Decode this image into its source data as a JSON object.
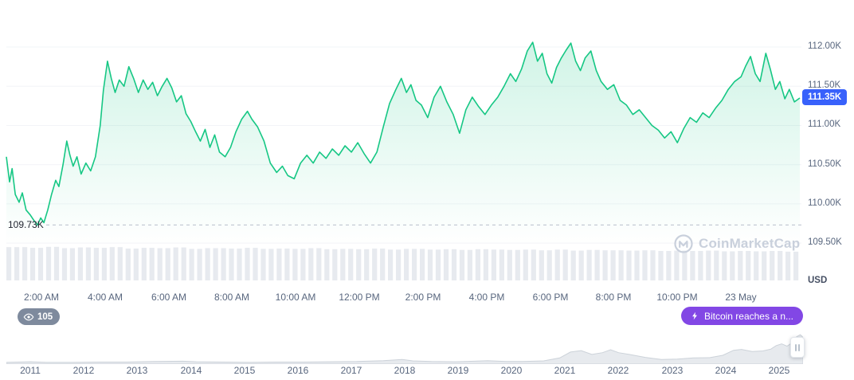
{
  "colors": {
    "line": "#16c784",
    "area_top": "rgba(22,199,132,0.20)",
    "area_bottom": "rgba(22,199,132,0.0)",
    "grid": "#f2f4f7",
    "dashed_line": "#b9c0cc",
    "volume_bar": "#e7eaef",
    "mini_fill": "#e7eaee",
    "mini_stroke": "#ccd2d9",
    "price_badge_bg": "#3861fb",
    "news_pill_bg": "#8247e5",
    "views_pill_bg": "#7e8a9d"
  },
  "watermark": {
    "text": "CoinMarketCap"
  },
  "annotations": {
    "watch_count": "105",
    "news_label": "Bitcoin reaches a n..."
  },
  "chart_data": {
    "main": {
      "type": "area",
      "unit_label": "USD",
      "current_price_label": "111.35K",
      "low_label": "109.73K",
      "low_value": 109.73,
      "y_top_value": 112.6,
      "y_bottom_value": 109.45,
      "t_min": 0.9,
      "t_max": 25.9,
      "y_ticks": [
        {
          "value": 112.0,
          "label": "112.00K"
        },
        {
          "value": 111.5,
          "label": "111.50K"
        },
        {
          "value": 111.0,
          "label": "111.00K"
        },
        {
          "value": 110.5,
          "label": "110.50K"
        },
        {
          "value": 110.0,
          "label": "110.00K"
        },
        {
          "value": 109.5,
          "label": "109.50K"
        }
      ],
      "x_ticks": [
        {
          "t": 2,
          "label": "2:00 AM"
        },
        {
          "t": 4,
          "label": "4:00 AM"
        },
        {
          "t": 6,
          "label": "6:00 AM"
        },
        {
          "t": 8,
          "label": "8:00 AM"
        },
        {
          "t": 10,
          "label": "10:00 AM"
        },
        {
          "t": 12,
          "label": "12:00 PM"
        },
        {
          "t": 14,
          "label": "2:00 PM"
        },
        {
          "t": 16,
          "label": "4:00 PM"
        },
        {
          "t": 18,
          "label": "6:00 PM"
        },
        {
          "t": 20,
          "label": "8:00 PM"
        },
        {
          "t": 22,
          "label": "10:00 PM"
        },
        {
          "t": 24,
          "label": "23 May"
        }
      ],
      "series": [
        [
          0.9,
          110.6
        ],
        [
          1.0,
          110.28
        ],
        [
          1.08,
          110.45
        ],
        [
          1.18,
          110.12
        ],
        [
          1.3,
          110.02
        ],
        [
          1.4,
          110.14
        ],
        [
          1.52,
          109.92
        ],
        [
          1.65,
          109.86
        ],
        [
          1.78,
          109.78
        ],
        [
          1.88,
          109.73
        ],
        [
          1.98,
          109.82
        ],
        [
          2.08,
          109.76
        ],
        [
          2.2,
          109.92
        ],
        [
          2.32,
          110.12
        ],
        [
          2.45,
          110.3
        ],
        [
          2.55,
          110.22
        ],
        [
          2.68,
          110.5
        ],
        [
          2.8,
          110.8
        ],
        [
          2.9,
          110.62
        ],
        [
          3.0,
          110.48
        ],
        [
          3.12,
          110.6
        ],
        [
          3.25,
          110.38
        ],
        [
          3.4,
          110.52
        ],
        [
          3.55,
          110.42
        ],
        [
          3.7,
          110.6
        ],
        [
          3.85,
          111.0
        ],
        [
          3.95,
          111.45
        ],
        [
          4.08,
          111.82
        ],
        [
          4.2,
          111.6
        ],
        [
          4.32,
          111.42
        ],
        [
          4.45,
          111.58
        ],
        [
          4.6,
          111.5
        ],
        [
          4.75,
          111.75
        ],
        [
          4.9,
          111.6
        ],
        [
          5.05,
          111.42
        ],
        [
          5.2,
          111.58
        ],
        [
          5.35,
          111.46
        ],
        [
          5.5,
          111.55
        ],
        [
          5.65,
          111.38
        ],
        [
          5.8,
          111.5
        ],
        [
          5.95,
          111.6
        ],
        [
          6.1,
          111.48
        ],
        [
          6.25,
          111.3
        ],
        [
          6.4,
          111.38
        ],
        [
          6.55,
          111.15
        ],
        [
          6.7,
          111.05
        ],
        [
          6.85,
          110.92
        ],
        [
          7.0,
          110.8
        ],
        [
          7.15,
          110.95
        ],
        [
          7.3,
          110.72
        ],
        [
          7.45,
          110.88
        ],
        [
          7.6,
          110.66
        ],
        [
          7.78,
          110.6
        ],
        [
          7.95,
          110.72
        ],
        [
          8.12,
          110.92
        ],
        [
          8.3,
          111.08
        ],
        [
          8.48,
          111.18
        ],
        [
          8.62,
          111.08
        ],
        [
          8.8,
          110.98
        ],
        [
          9.0,
          110.8
        ],
        [
          9.2,
          110.52
        ],
        [
          9.4,
          110.4
        ],
        [
          9.58,
          110.48
        ],
        [
          9.75,
          110.36
        ],
        [
          9.95,
          110.32
        ],
        [
          10.15,
          110.52
        ],
        [
          10.35,
          110.62
        ],
        [
          10.55,
          110.52
        ],
        [
          10.75,
          110.66
        ],
        [
          10.95,
          110.58
        ],
        [
          11.15,
          110.7
        ],
        [
          11.35,
          110.62
        ],
        [
          11.55,
          110.74
        ],
        [
          11.75,
          110.66
        ],
        [
          11.95,
          110.78
        ],
        [
          12.15,
          110.64
        ],
        [
          12.35,
          110.52
        ],
        [
          12.55,
          110.66
        ],
        [
          12.75,
          110.98
        ],
        [
          12.95,
          111.28
        ],
        [
          13.15,
          111.46
        ],
        [
          13.32,
          111.6
        ],
        [
          13.48,
          111.42
        ],
        [
          13.62,
          111.52
        ],
        [
          13.78,
          111.32
        ],
        [
          13.95,
          111.26
        ],
        [
          14.15,
          111.1
        ],
        [
          14.35,
          111.36
        ],
        [
          14.55,
          111.5
        ],
        [
          14.75,
          111.3
        ],
        [
          14.95,
          111.14
        ],
        [
          15.15,
          110.9
        ],
        [
          15.35,
          111.2
        ],
        [
          15.55,
          111.36
        ],
        [
          15.75,
          111.24
        ],
        [
          15.95,
          111.14
        ],
        [
          16.15,
          111.26
        ],
        [
          16.35,
          111.36
        ],
        [
          16.55,
          111.5
        ],
        [
          16.75,
          111.66
        ],
        [
          16.92,
          111.56
        ],
        [
          17.1,
          111.72
        ],
        [
          17.28,
          111.95
        ],
        [
          17.45,
          112.06
        ],
        [
          17.6,
          111.82
        ],
        [
          17.75,
          111.92
        ],
        [
          17.9,
          111.66
        ],
        [
          18.05,
          111.54
        ],
        [
          18.2,
          111.74
        ],
        [
          18.35,
          111.86
        ],
        [
          18.5,
          111.96
        ],
        [
          18.65,
          112.05
        ],
        [
          18.8,
          111.82
        ],
        [
          18.95,
          111.7
        ],
        [
          19.1,
          111.86
        ],
        [
          19.28,
          111.95
        ],
        [
          19.45,
          111.7
        ],
        [
          19.6,
          111.56
        ],
        [
          19.8,
          111.46
        ],
        [
          20.0,
          111.52
        ],
        [
          20.2,
          111.32
        ],
        [
          20.4,
          111.26
        ],
        [
          20.6,
          111.14
        ],
        [
          20.8,
          111.2
        ],
        [
          21.0,
          111.1
        ],
        [
          21.2,
          111.0
        ],
        [
          21.4,
          110.94
        ],
        [
          21.6,
          110.84
        ],
        [
          21.8,
          110.92
        ],
        [
          22.0,
          110.78
        ],
        [
          22.2,
          110.96
        ],
        [
          22.4,
          111.1
        ],
        [
          22.6,
          111.04
        ],
        [
          22.8,
          111.16
        ],
        [
          23.0,
          111.1
        ],
        [
          23.2,
          111.22
        ],
        [
          23.4,
          111.32
        ],
        [
          23.6,
          111.46
        ],
        [
          23.8,
          111.56
        ],
        [
          24.0,
          111.62
        ],
        [
          24.15,
          111.76
        ],
        [
          24.3,
          111.88
        ],
        [
          24.45,
          111.66
        ],
        [
          24.6,
          111.56
        ],
        [
          24.78,
          111.92
        ],
        [
          24.92,
          111.72
        ],
        [
          25.08,
          111.46
        ],
        [
          25.22,
          111.56
        ],
        [
          25.38,
          111.34
        ],
        [
          25.52,
          111.46
        ],
        [
          25.68,
          111.3
        ],
        [
          25.85,
          111.35
        ]
      ],
      "volume_bars": [
        0.95,
        0.93,
        0.96,
        0.92,
        0.94,
        0.93,
        0.95,
        0.91,
        0.93,
        0.92,
        0.94,
        0.9,
        0.92,
        0.91,
        0.93,
        0.9,
        0.91,
        0.9,
        0.92,
        0.89,
        0.9,
        0.89,
        0.91,
        0.88,
        0.9,
        0.88,
        0.89,
        0.87,
        0.89,
        0.88,
        0.87,
        0.88,
        0.86,
        0.88,
        0.85,
        0.87,
        0.86,
        0.85,
        0.86,
        0.84,
        0.85,
        0.84,
        0.85,
        0.83,
        0.84,
        0.83,
        0.84,
        0.82
      ]
    },
    "history": {
      "type": "area",
      "x_min": 2010.55,
      "x_max": 2025.45,
      "years": [
        "2011",
        "2012",
        "2013",
        "2014",
        "2015",
        "2016",
        "2017",
        "2018",
        "2019",
        "2020",
        "2021",
        "2022",
        "2023",
        "2024",
        "2025"
      ],
      "profile": [
        [
          2010.55,
          0.03
        ],
        [
          2011.0,
          0.05
        ],
        [
          2011.3,
          0.03
        ],
        [
          2011.8,
          0.03
        ],
        [
          2012.3,
          0.04
        ],
        [
          2012.8,
          0.04
        ],
        [
          2013.3,
          0.06
        ],
        [
          2013.85,
          0.07
        ],
        [
          2014.1,
          0.05
        ],
        [
          2014.6,
          0.04
        ],
        [
          2015.1,
          0.03
        ],
        [
          2015.6,
          0.04
        ],
        [
          2016.1,
          0.04
        ],
        [
          2016.6,
          0.05
        ],
        [
          2017.1,
          0.06
        ],
        [
          2017.6,
          0.09
        ],
        [
          2017.95,
          0.13
        ],
        [
          2018.15,
          0.08
        ],
        [
          2018.5,
          0.06
        ],
        [
          2018.95,
          0.05
        ],
        [
          2019.3,
          0.07
        ],
        [
          2019.55,
          0.09
        ],
        [
          2019.9,
          0.06
        ],
        [
          2020.2,
          0.06
        ],
        [
          2020.6,
          0.08
        ],
        [
          2020.9,
          0.18
        ],
        [
          2021.1,
          0.38
        ],
        [
          2021.3,
          0.43
        ],
        [
          2021.5,
          0.3
        ],
        [
          2021.7,
          0.36
        ],
        [
          2021.85,
          0.46
        ],
        [
          2022.0,
          0.36
        ],
        [
          2022.2,
          0.3
        ],
        [
          2022.5,
          0.2
        ],
        [
          2022.8,
          0.13
        ],
        [
          2023.1,
          0.14
        ],
        [
          2023.4,
          0.18
        ],
        [
          2023.7,
          0.19
        ],
        [
          2023.95,
          0.27
        ],
        [
          2024.15,
          0.44
        ],
        [
          2024.3,
          0.47
        ],
        [
          2024.5,
          0.4
        ],
        [
          2024.7,
          0.42
        ],
        [
          2024.85,
          0.48
        ],
        [
          2024.95,
          0.6
        ],
        [
          2025.05,
          0.66
        ],
        [
          2025.15,
          0.58
        ],
        [
          2025.25,
          0.7
        ],
        [
          2025.33,
          0.9
        ],
        [
          2025.4,
          0.97
        ],
        [
          2025.45,
          0.88
        ]
      ]
    }
  }
}
